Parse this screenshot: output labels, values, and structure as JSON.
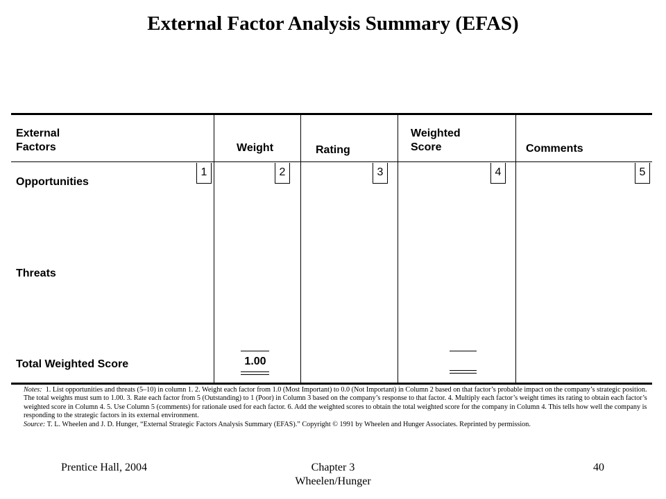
{
  "title": "External Factor Analysis Summary (EFAS)",
  "table": {
    "headers": {
      "factors_line1": "External",
      "factors_line2": "Factors",
      "weight": "Weight",
      "rating": "Rating",
      "weighted_line1": "Weighted",
      "weighted_line2": "Score",
      "comments": "Comments"
    },
    "column_numbers": [
      "1",
      "2",
      "3",
      "4",
      "5"
    ],
    "rows": {
      "opportunities": "Opportunities",
      "threats": "Threats",
      "total": "Total Weighted Score"
    },
    "total_weight": "1.00"
  },
  "notes": {
    "notes_label": "Notes:",
    "notes_text": "1. List opportunities and threats (5–10) in column 1. 2. Weight each factor from 1.0 (Most Important) to 0.0 (Not Important) in Column 2 based on that factor’s probable impact on the company’s strategic position. The total weights must sum to 1.00. 3. Rate each factor from 5 (Outstanding) to 1 (Poor) in Column 3 based on the company’s response to that factor. 4. Multiply each factor’s weight times its rating to obtain each factor’s weighted score in Column 4. 5. Use Column 5 (comments) for rationale used for each factor. 6. Add the weighted scores to obtain the total weighted score for the company in Column 4. This tells how well the company is responding to the strategic factors in its external environment.",
    "source_label": "Source:",
    "source_text": "T. L. Wheelen and J. D. Hunger, “External Strategic Factors Analysis Summary (EFAS).” Copyright © 1991 by Wheelen and Hunger Associates. Reprinted by permission."
  },
  "footer": {
    "left": "Prentice Hall, 2004",
    "center_line1": "Chapter 3",
    "center_line2": "Wheelen/Hunger",
    "page": "40"
  }
}
